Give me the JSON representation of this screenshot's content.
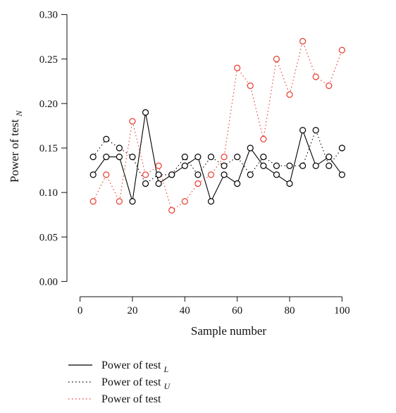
{
  "chart_data": {
    "type": "line",
    "title": "",
    "xlabel": "Sample number",
    "ylabel": {
      "text": "Power of test",
      "subscript": "N"
    },
    "xlim": [
      -5,
      112
    ],
    "ylim": [
      -0.01,
      0.31
    ],
    "xticks": [
      0,
      20,
      40,
      60,
      80,
      100
    ],
    "xtick_labels": [
      "0",
      "20",
      "40",
      "60",
      "80",
      "100"
    ],
    "yticks": [
      0.0,
      0.05,
      0.1,
      0.15,
      0.2,
      0.25,
      0.3
    ],
    "ytick_labels": [
      "0.00",
      "0.05",
      "0.10",
      "0.15",
      "0.20",
      "0.25",
      "0.30"
    ],
    "grid": false,
    "legend_position": "bottom-left, below plot",
    "x": [
      5,
      10,
      15,
      20,
      25,
      30,
      35,
      40,
      45,
      50,
      55,
      60,
      65,
      70,
      75,
      80,
      85,
      90,
      95,
      100
    ],
    "series": [
      {
        "name": "Power of test",
        "name_subscript": "L",
        "line_style": "solid",
        "color": "#000000",
        "values": [
          0.12,
          0.14,
          0.14,
          0.09,
          0.19,
          0.11,
          0.12,
          0.13,
          0.14,
          0.09,
          0.12,
          0.11,
          0.15,
          0.13,
          0.12,
          0.11,
          0.17,
          0.13,
          0.14,
          0.12
        ]
      },
      {
        "name": "Power of test",
        "name_subscript": "U",
        "line_style": "dotted",
        "color": "#000000",
        "values": [
          0.14,
          0.16,
          0.15,
          0.14,
          0.11,
          0.12,
          0.12,
          0.14,
          0.12,
          0.14,
          0.13,
          0.14,
          0.12,
          0.14,
          0.13,
          0.13,
          0.13,
          0.17,
          0.13,
          0.15
        ]
      },
      {
        "name": "Power of test",
        "name_subscript": "",
        "line_style": "dotted",
        "color": "#e8392b",
        "values": [
          0.09,
          0.12,
          0.09,
          0.18,
          0.12,
          0.13,
          0.08,
          0.09,
          0.11,
          0.12,
          0.14,
          0.24,
          0.22,
          0.16,
          0.25,
          0.21,
          0.27,
          0.23,
          0.22,
          0.26
        ]
      }
    ]
  }
}
